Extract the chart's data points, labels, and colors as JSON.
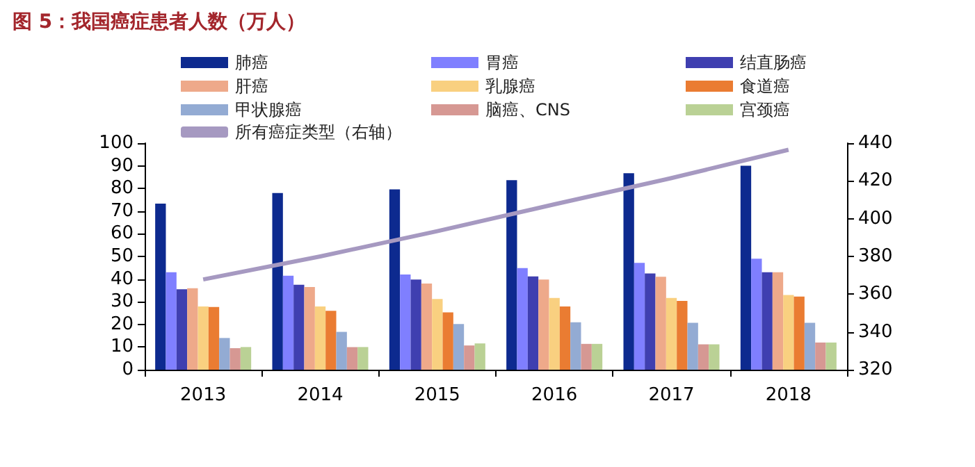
{
  "chart_data": {
    "type": "bar",
    "title": "图 5：我国癌症患者人数（万人）",
    "categories": [
      "2013",
      "2014",
      "2015",
      "2016",
      "2017",
      "2018"
    ],
    "series": [
      {
        "name": "肺癌",
        "color": "#0d2a8f",
        "values": [
          73.3,
          78,
          79.6,
          83.7,
          86.7,
          90
        ]
      },
      {
        "name": "胃癌",
        "color": "#7f7fff",
        "values": [
          43,
          41.5,
          42,
          44.9,
          47.2,
          49
        ]
      },
      {
        "name": "结直肠癌",
        "color": "#3f3fb0",
        "values": [
          35.5,
          37.5,
          39.8,
          41.2,
          42.5,
          43
        ]
      },
      {
        "name": "肝癌",
        "color": "#eea98a",
        "values": [
          36,
          36.5,
          38,
          39.8,
          41,
          43
        ]
      },
      {
        "name": "乳腺癌",
        "color": "#f9d080",
        "values": [
          27.9,
          27.9,
          31.2,
          31.7,
          31.7,
          33
        ]
      },
      {
        "name": "食道癌",
        "color": "#ea7c32",
        "values": [
          27.7,
          26,
          25.3,
          27.9,
          30.4,
          32.3
        ]
      },
      {
        "name": "甲状腺癌",
        "color": "#93abd3",
        "values": [
          14,
          16.7,
          20.2,
          20.9,
          20.7,
          20.7
        ]
      },
      {
        "name": "脑癌、CNS",
        "color": "#d69893",
        "values": [
          9.5,
          10,
          10.7,
          11.4,
          11.2,
          12
        ]
      },
      {
        "name": "宫颈癌",
        "color": "#bad195",
        "values": [
          10,
          10,
          11.6,
          11.4,
          11.2,
          12
        ]
      },
      {
        "name": "所有癌症类型（右轴）",
        "type": "line",
        "axis": "y2",
        "color": "#a699c1",
        "values": [
          367.8,
          380,
          393.4,
          407.6,
          421.5,
          436.5
        ]
      }
    ],
    "ylim": [
      0,
      100
    ],
    "yticks": [
      0,
      10,
      20,
      30,
      40,
      50,
      60,
      70,
      80,
      90,
      100
    ],
    "y2lim": [
      320,
      440
    ],
    "y2ticks": [
      320,
      340,
      360,
      380,
      400,
      420,
      440
    ],
    "grid": false,
    "legend": "top",
    "marker": "none"
  }
}
